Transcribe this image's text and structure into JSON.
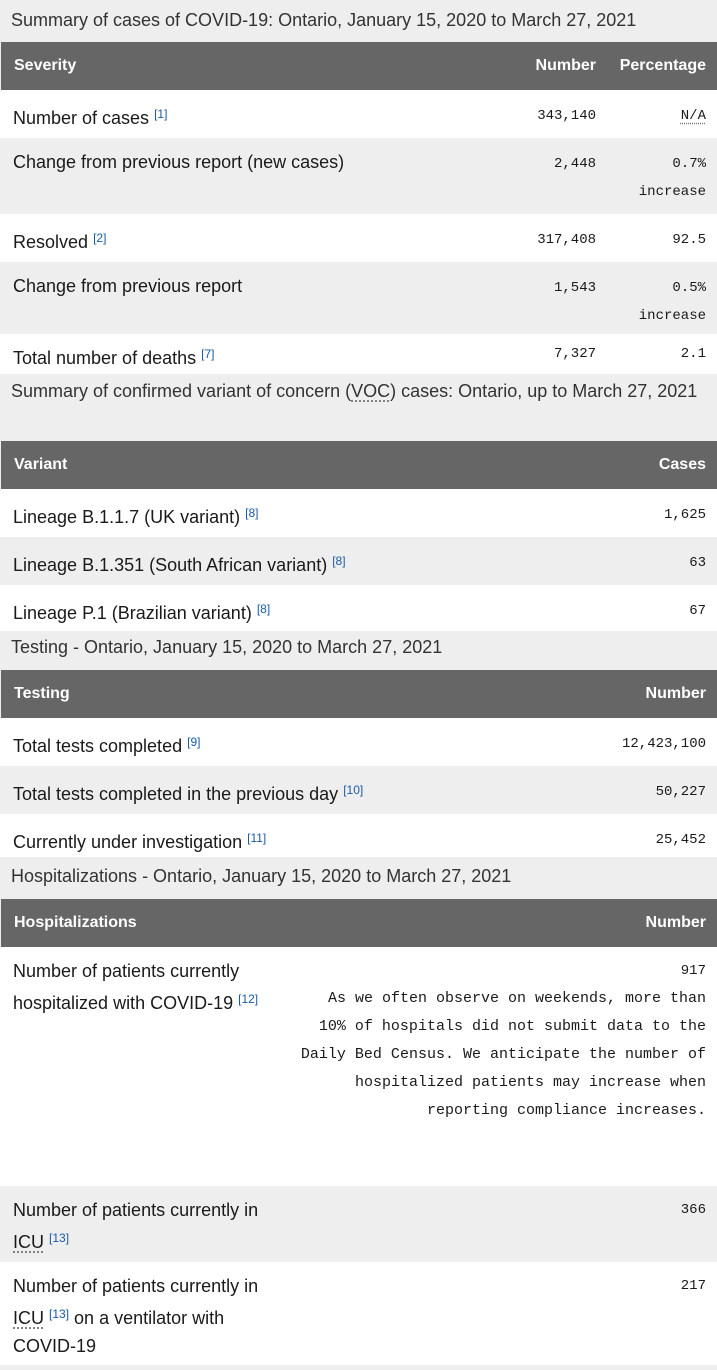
{
  "cases": {
    "caption": "Summary of cases of COVID-19: Ontario, January 15, 2020 to March 27, 2021",
    "headers": [
      "Severity",
      "Number",
      "Percentage"
    ],
    "rows": [
      {
        "label": "Number of cases",
        "ref": "[1]",
        "number": "343,140",
        "pct": "N/A",
        "pct2": ""
      },
      {
        "label": "Change from previous report (new cases)",
        "ref": "",
        "number": "2,448",
        "pct": "0.7%",
        "pct2": "increase"
      },
      {
        "label": "Resolved",
        "ref": "[2]",
        "number": "317,408",
        "pct": "92.5",
        "pct2": ""
      },
      {
        "label": "Change from previous report",
        "ref": "",
        "number": "1,543",
        "pct": "0.5%",
        "pct2": "increase"
      },
      {
        "label": "Total number of deaths",
        "ref": "[7]",
        "number": "7,327",
        "pct": "2.1",
        "pct2": ""
      }
    ]
  },
  "voc": {
    "caption_pre": "Summary of confirmed variant of concern (",
    "caption_abbr": "VOC",
    "caption_post": ") cases: Ontario, up to March 27, 2021",
    "headers": [
      "Variant",
      "Cases"
    ],
    "rows": [
      {
        "label": "Lineage B.1.1.7 (UK variant)",
        "ref": "[8]",
        "number": "1,625"
      },
      {
        "label": "Lineage B.1.351 (South African variant)",
        "ref": "[8]",
        "number": "63"
      },
      {
        "label": "Lineage P.1 (Brazilian variant)",
        "ref": "[8]",
        "number": "67"
      }
    ]
  },
  "testing": {
    "caption": "Testing - Ontario, January 15, 2020 to March 27, 2021",
    "headers": [
      "Testing",
      "Number"
    ],
    "rows": [
      {
        "label": "Total tests completed",
        "ref": "[9]",
        "number": "12,423,100"
      },
      {
        "label": "Total tests completed in the previous day",
        "ref": "[10]",
        "number": "50,227"
      },
      {
        "label": "Currently under investigation",
        "ref": "[11]",
        "number": "25,452"
      }
    ]
  },
  "hosp": {
    "caption": "Hospitalizations - Ontario, January 15, 2020 to March 27, 2021",
    "headers": [
      "Hospitalizations",
      "Number"
    ],
    "rows": [
      {
        "label": "Number of patients currently hospitalized with COVID-19",
        "ref": "[12]",
        "number": "917",
        "note": "As we often observe on weekends, more than 10% of hospitals did not submit data to the Daily Bed Census. We anticipate the number of hospitalized patients may increase when reporting compliance increases."
      },
      {
        "label_pre": "Number of patients currently in",
        "abbr": "ICU",
        "ref": "[13]",
        "label_post": "",
        "number": "366"
      },
      {
        "label_pre": "Number of patients currently in",
        "abbr": "ICU",
        "ref": "[13]",
        "label_post": "on a ventilator with COVID-19",
        "number": "217"
      }
    ]
  }
}
